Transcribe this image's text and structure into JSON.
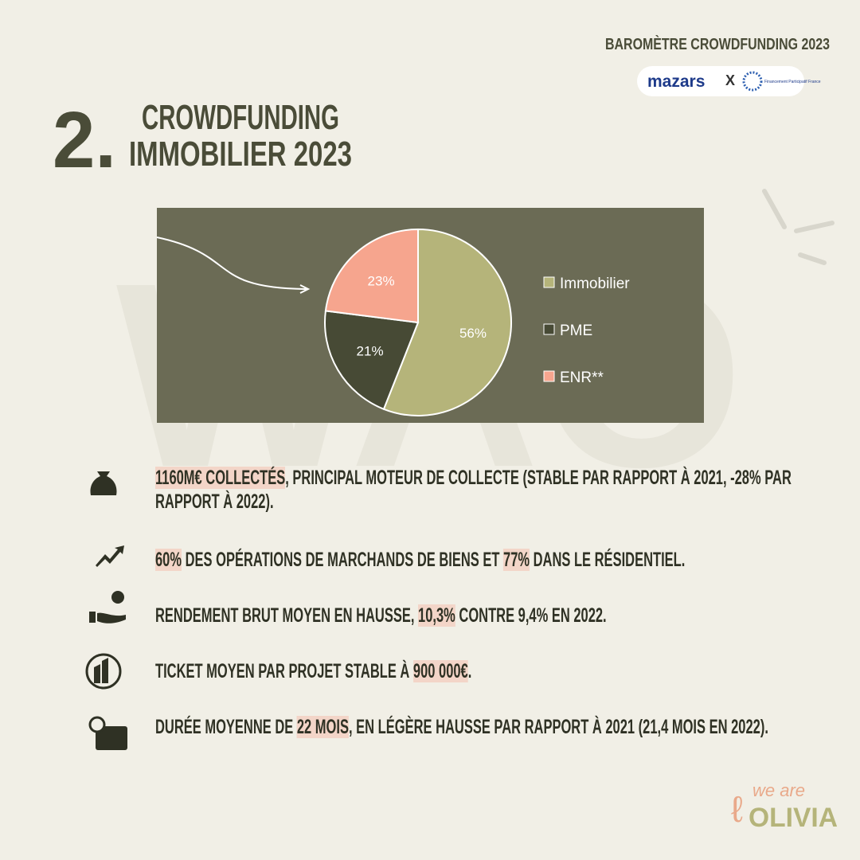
{
  "header": {
    "kicker": "BAROMÈTRE CROWDFUNDING 2023",
    "partner_1": "mazars",
    "separator": "X",
    "partner_2": "Financement Participatif France",
    "number": "2.",
    "title_line_1": "CROWDFUNDING",
    "title_line_2": "IMMOBILIER 2023"
  },
  "chart_data": {
    "type": "pie",
    "categories": [
      "Immobilier",
      "PME",
      "ENR**"
    ],
    "values": [
      56,
      21,
      23
    ],
    "value_labels": [
      "56%",
      "21%",
      "23%"
    ],
    "colors": [
      "#b5b47a",
      "#474a35",
      "#f6a58e"
    ]
  },
  "bullets": [
    {
      "parts": [
        {
          "text": "1160M€ COLLECTÉS",
          "highlight": true
        },
        {
          "text": ", PRINCIPAL MOTEUR DE COLLECTE (STABLE PAR RAPPORT À 2021, -28% PAR RAPPORT À 2022)."
        }
      ]
    },
    {
      "parts": [
        {
          "text": "60%",
          "highlight": true
        },
        {
          "text": " DES OPÉRATIONS DE MARCHANDS DE BIENS ET "
        },
        {
          "text": "77%",
          "highlight": true
        },
        {
          "text": " DANS LE RÉSIDENTIEL."
        }
      ]
    },
    {
      "parts": [
        {
          "text": "RENDEMENT BRUT MOYEN EN HAUSSE, "
        },
        {
          "text": "10,3%",
          "highlight": true
        },
        {
          "text": " CONTRE 9,4% EN 2022."
        }
      ]
    },
    {
      "parts": [
        {
          "text": "TICKET MOYEN PAR PROJET STABLE À "
        },
        {
          "text": "900 000€",
          "highlight": true
        },
        {
          "text": "."
        }
      ]
    },
    {
      "parts": [
        {
          "text": "DURÉE MOYENNE DE "
        },
        {
          "text": "22 MOIS",
          "highlight": true
        },
        {
          "text": ", EN LÉGÈRE HAUSSE PAR RAPPORT À 2021 (21,4 MOIS EN 2022)."
        }
      ]
    }
  ],
  "footer": {
    "brand_small": "we are",
    "brand": "OLIVIA"
  }
}
